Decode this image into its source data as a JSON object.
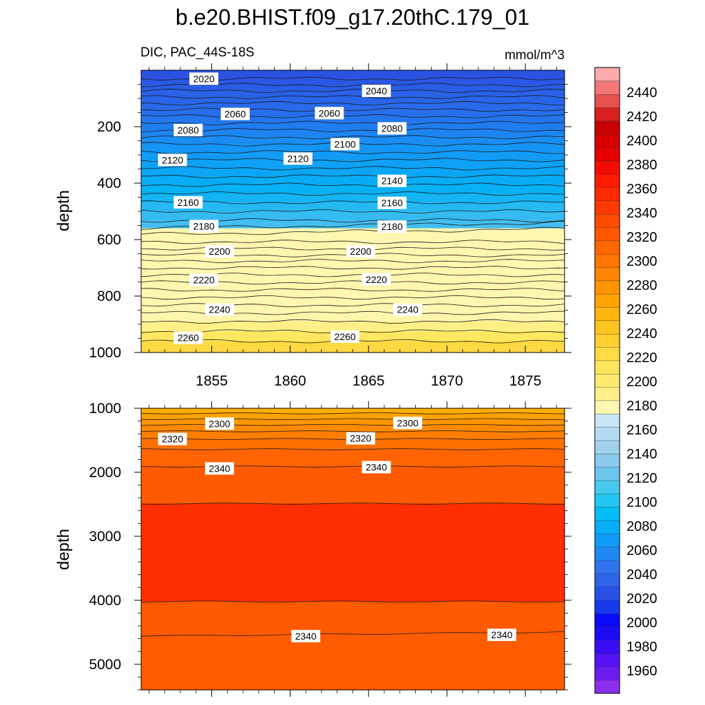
{
  "chart_data": [
    {
      "type": "contour",
      "title": "b.e20.BHIST.f09_g17.20thC.179_01",
      "subtitle_left": "DIC, PAC_44S-18S",
      "subtitle_right": "mmol/m^3",
      "ylabel": "depth",
      "xlim": [
        1850.5,
        1877.5
      ],
      "ylim": [
        0,
        1000
      ],
      "y_reversed": true,
      "x_ticks": [
        1855,
        1860,
        1865,
        1870,
        1875
      ],
      "y_ticks": [
        200,
        400,
        600,
        800,
        1000
      ],
      "contour_interval": 10,
      "contour_lines_depth_start": [
        30,
        52,
        73,
        95,
        117,
        140,
        163,
        187,
        212,
        237,
        262,
        290,
        318,
        347,
        376,
        406,
        437,
        468,
        500,
        532,
        560,
        582,
        608,
        632,
        655,
        676,
        700,
        725,
        752,
        778,
        805,
        832,
        860,
        890,
        925,
        960
      ],
      "contour_labels": [
        {
          "x": 1854.5,
          "depth": 30,
          "text": "2020"
        },
        {
          "x": 1865.5,
          "depth": 73,
          "text": "2040"
        },
        {
          "x": 1856.5,
          "depth": 155,
          "text": "2060"
        },
        {
          "x": 1862.5,
          "depth": 152,
          "text": "2060"
        },
        {
          "x": 1853.5,
          "depth": 212,
          "text": "2080"
        },
        {
          "x": 1866.5,
          "depth": 206,
          "text": "2080"
        },
        {
          "x": 1863.5,
          "depth": 262,
          "text": "2100"
        },
        {
          "x": 1852.5,
          "depth": 318,
          "text": "2120"
        },
        {
          "x": 1860.5,
          "depth": 313,
          "text": "2120"
        },
        {
          "x": 1866.5,
          "depth": 392,
          "text": "2140"
        },
        {
          "x": 1853.5,
          "depth": 468,
          "text": "2160"
        },
        {
          "x": 1866.5,
          "depth": 470,
          "text": "2160"
        },
        {
          "x": 1854.5,
          "depth": 552,
          "text": "2180"
        },
        {
          "x": 1866.5,
          "depth": 554,
          "text": "2180"
        },
        {
          "x": 1855.5,
          "depth": 642,
          "text": "2200"
        },
        {
          "x": 1864.5,
          "depth": 642,
          "text": "2200"
        },
        {
          "x": 1854.5,
          "depth": 743,
          "text": "2220"
        },
        {
          "x": 1865.5,
          "depth": 741,
          "text": "2220"
        },
        {
          "x": 1855.5,
          "depth": 848,
          "text": "2240"
        },
        {
          "x": 1867.5,
          "depth": 848,
          "text": "2240"
        },
        {
          "x": 1853.5,
          "depth": 948,
          "text": "2260"
        },
        {
          "x": 1863.5,
          "depth": 944,
          "text": "2260"
        }
      ]
    },
    {
      "type": "contour",
      "ylabel": "depth",
      "xlim": [
        1850.5,
        1877.5
      ],
      "ylim": [
        1000,
        5400
      ],
      "y_reversed": true,
      "y_ticks": [
        1000,
        2000,
        3000,
        4000,
        5000
      ],
      "contour_lines_depth": [
        1080,
        1170,
        1260,
        1360,
        1480,
        1640,
        1910,
        2490,
        4020,
        4560
      ],
      "contour_labels": [
        {
          "x": 1855.5,
          "depth": 1240,
          "text": "2300"
        },
        {
          "x": 1867.5,
          "depth": 1230,
          "text": "2300"
        },
        {
          "x": 1852.5,
          "depth": 1480,
          "text": "2320"
        },
        {
          "x": 1864.5,
          "depth": 1470,
          "text": "2320"
        },
        {
          "x": 1855.5,
          "depth": 1940,
          "text": "2340"
        },
        {
          "x": 1865.5,
          "depth": 1920,
          "text": "2340"
        },
        {
          "x": 1861.0,
          "depth": 4560,
          "text": "2340"
        },
        {
          "x": 1873.5,
          "depth": 4540,
          "text": "2340"
        }
      ]
    }
  ],
  "colorbar": {
    "labels": [
      "1960",
      "1980",
      "2000",
      "2020",
      "2040",
      "2060",
      "2080",
      "2100",
      "2120",
      "2140",
      "2160",
      "2180",
      "2200",
      "2220",
      "2240",
      "2260",
      "2280",
      "2300",
      "2320",
      "2340",
      "2360",
      "2380",
      "2400",
      "2420",
      "2440"
    ],
    "colors": [
      "#8c2ef0",
      "#6e1cf0",
      "#5512f5",
      "#3a0cf5",
      "#1f0af7",
      "#0a0aff",
      "#1838ee",
      "#2850e8",
      "#2e63ea",
      "#2e74ee",
      "#1f88f4",
      "#119bf8",
      "#06aef9",
      "#05bdf7",
      "#22c8f3",
      "#48c9f0",
      "#6cc6ec",
      "#8ccbee",
      "#a2d1ee",
      "#b5dbf2",
      "#c8e6f6",
      "#fff6b0",
      "#fff08a",
      "#ffea70",
      "#ffe55c",
      "#ffdb44",
      "#ffd030",
      "#ffc41e",
      "#ffb40e",
      "#ffa400",
      "#ff9400",
      "#ff8500",
      "#ff7600",
      "#ff6800",
      "#ff5800",
      "#ff4a00",
      "#ff3a00",
      "#ff2a00",
      "#ff1a00",
      "#f50a00",
      "#e80000",
      "#d80000",
      "#c80000",
      "#d82020",
      "#e85050",
      "#f47878",
      "#fcaaaa"
    ]
  }
}
